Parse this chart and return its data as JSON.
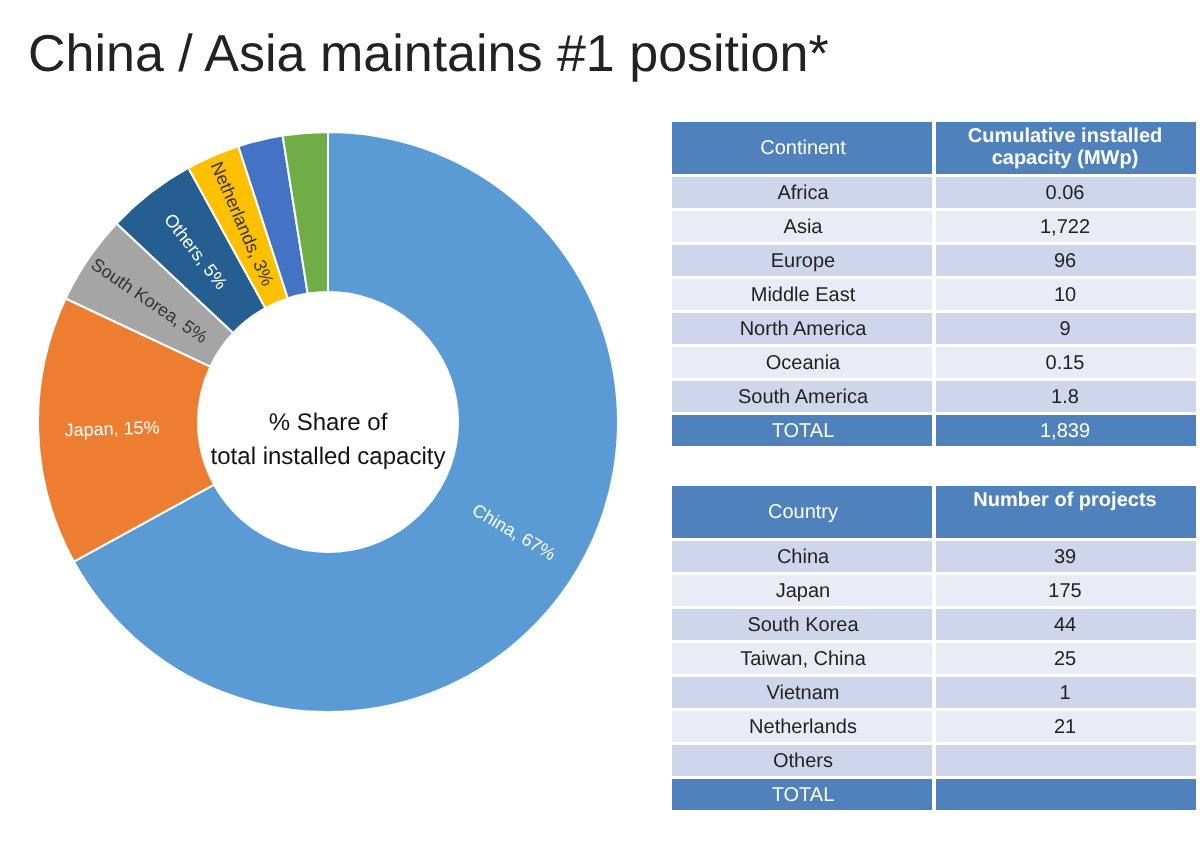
{
  "chart_data": [
    {
      "type": "donut",
      "title": "China / Asia maintains #1 position*",
      "annotations": [
        "% Share of total installed capacity"
      ],
      "categories": [
        "China, 67%",
        "Japan, 15%",
        "South Korea, 5%",
        "Others, 5%",
        "Netherlands, 3%",
        null,
        null
      ],
      "values": [
        67,
        15,
        5,
        5,
        3,
        2.5,
        2.5
      ],
      "colors": [
        "#5b9bd5",
        "#ed7d31",
        "#a5a5a5",
        "#255e91",
        "#ffc000",
        "#4472c4",
        "#70ad47"
      ],
      "legend": false
    },
    {
      "type": "other",
      "xlabel": "Continent",
      "ylabel": "Cumulative installed capacity (MWp)",
      "categories": [
        "Africa",
        "Asia",
        "Europe",
        "Middle East",
        "North America",
        "Oceania",
        "South America",
        "TOTAL"
      ],
      "values": [
        0.06,
        1722,
        96,
        10,
        9,
        0.15,
        1.8,
        1839
      ],
      "value_labels": [
        "0.06",
        "1,722",
        "96",
        "10",
        "9",
        "0.15",
        "1.8",
        "1,839"
      ]
    },
    {
      "type": "other",
      "xlabel": "Country",
      "ylabel": "Number of projects",
      "categories": [
        "China",
        "Japan",
        "South Korea",
        "Taiwan, China",
        "Vietnam",
        "Netherlands",
        "Others",
        "TOTAL"
      ],
      "values": [
        39,
        175,
        44,
        25,
        1,
        21,
        null,
        null
      ],
      "value_labels": [
        "39",
        "175",
        "44",
        "25",
        "1",
        "21",
        null,
        null
      ]
    }
  ]
}
